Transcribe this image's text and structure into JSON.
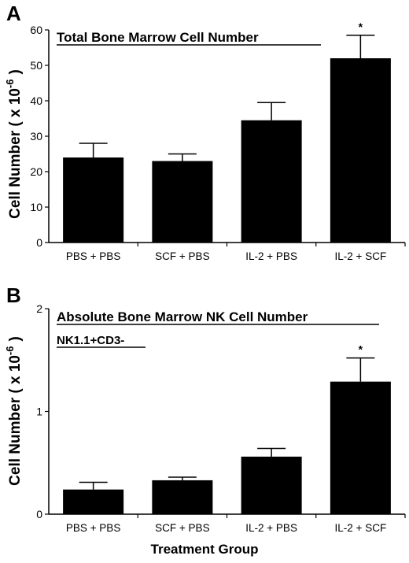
{
  "chart_data": [
    {
      "type": "bar",
      "panel": "A",
      "title": "Total Bone Marrow Cell Number",
      "subtitle": "",
      "ylabel": "Cell Number ( x 10 -6 )",
      "ylabel_base": "Cell Number ( x 10",
      "ylabel_exp": "-6",
      "ylabel_close": ")",
      "xlabel": "",
      "ylim": [
        0,
        60
      ],
      "yticks": [
        0,
        10,
        20,
        30,
        40,
        50,
        60
      ],
      "categories": [
        "PBS + PBS",
        "SCF + PBS",
        "IL-2 + PBS",
        "IL-2 + SCF"
      ],
      "values": [
        24,
        23,
        34.5,
        52
      ],
      "errors": [
        4,
        2,
        5,
        6.5
      ],
      "significance": [
        "",
        "",
        "",
        "*"
      ],
      "grid": false,
      "color": "#000000"
    },
    {
      "type": "bar",
      "panel": "B",
      "title": "Absolute Bone Marrow NK Cell Number",
      "subtitle": "NK1.1+CD3-",
      "ylabel": "Cell Number ( x 10 -6 )",
      "ylabel_base": "Cell Number ( x 10",
      "ylabel_exp": "-6",
      "ylabel_close": ")",
      "xlabel": "Treatment Group",
      "ylim": [
        0,
        2
      ],
      "yticks": [
        0,
        1,
        2
      ],
      "categories": [
        "PBS + PBS",
        "SCF + PBS",
        "IL-2 + PBS",
        "IL-2 + SCF"
      ],
      "values": [
        0.24,
        0.33,
        0.56,
        1.29
      ],
      "errors": [
        0.07,
        0.03,
        0.08,
        0.23
      ],
      "significance": [
        "",
        "",
        "",
        "*"
      ],
      "grid": false,
      "color": "#000000"
    }
  ]
}
